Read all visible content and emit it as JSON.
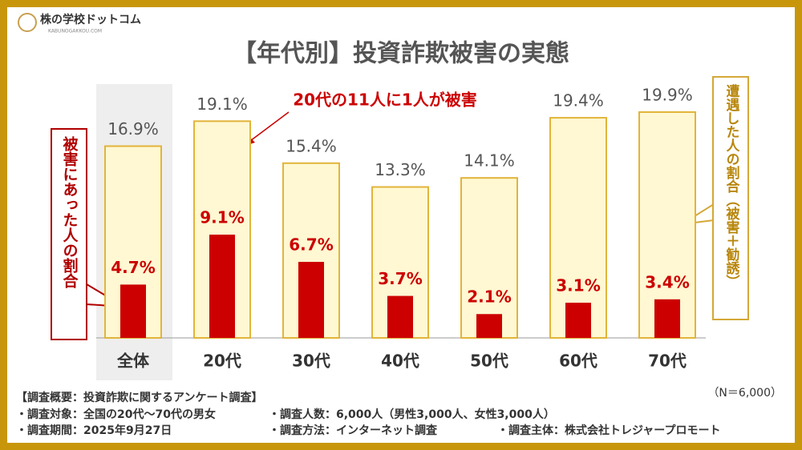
{
  "logo": {
    "name": "株の学校ドットコム",
    "sub": "KABUNOGAKKOU.COM"
  },
  "chart_data": {
    "type": "bar",
    "title": "【年代別】投資詐欺被害の実態",
    "categories": [
      "全体",
      "20代",
      "30代",
      "40代",
      "50代",
      "60代",
      "70代"
    ],
    "series": [
      {
        "name": "遭遇した人の割合（被害＋勧誘）",
        "color": "#fff8d2",
        "stroke": "#e2b43a",
        "values": [
          16.9,
          19.1,
          15.4,
          13.3,
          14.1,
          19.4,
          19.9
        ],
        "value_labels": [
          "16.9%",
          "19.1%",
          "15.4%",
          "13.3%",
          "14.1%",
          "19.4%",
          "19.9%"
        ]
      },
      {
        "name": "被害にあった人の割合",
        "color": "#cc0000",
        "values": [
          4.7,
          9.1,
          6.7,
          3.7,
          2.1,
          3.1,
          3.4
        ],
        "value_labels": [
          "4.7%",
          "9.1%",
          "6.7%",
          "3.7%",
          "2.1%",
          "3.1%",
          "3.4%"
        ]
      }
    ],
    "annotation": "20代の11人に1人が被害"
  },
  "survey": {
    "title": "【調査概要：投資詐欺に関するアンケート調査】",
    "n": "（N＝6,000）",
    "items": [
      "・調査対象：全国の20代〜70代の男女",
      "・調査人数：6,000人（男性3,000人、女性3,000人）",
      "・調査期間：2025年9月27日",
      "・調査方法：インターネット調査",
      "・調査主体：株式会社トレジャープロモート"
    ]
  }
}
